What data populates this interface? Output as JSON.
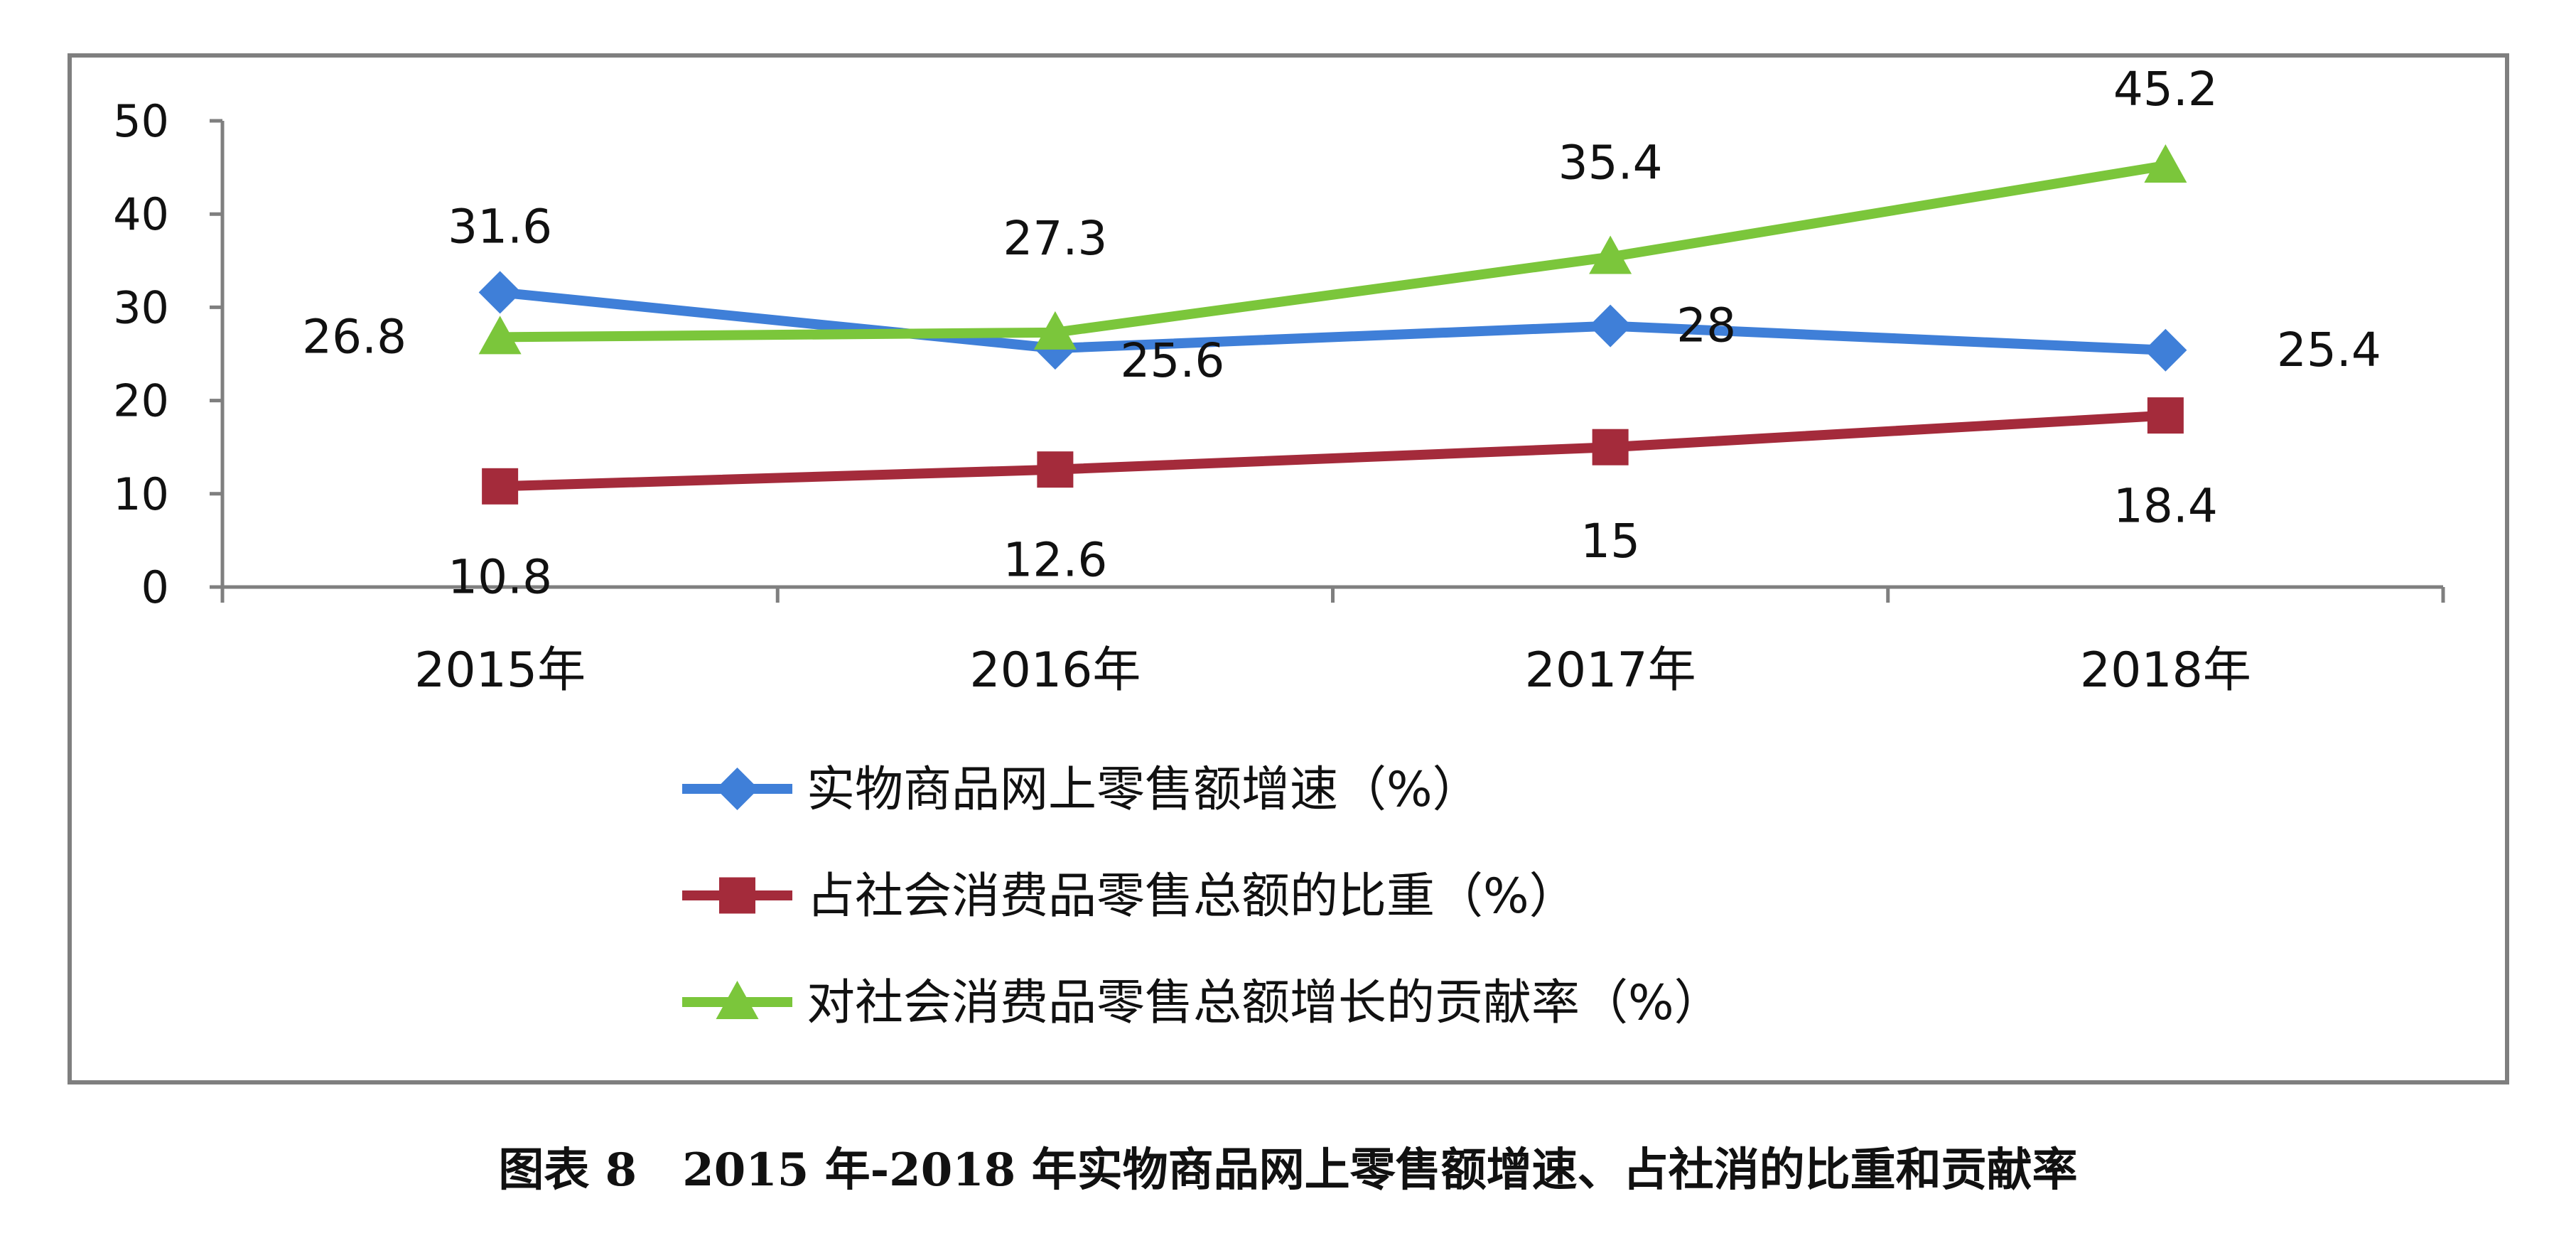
{
  "caption": "图表 8　2015 年-2018 年实物商品网上零售额增速、占社消的比重和贡献率",
  "chart_data": {
    "type": "line",
    "categories": [
      "2015年",
      "2016年",
      "2017年",
      "2018年"
    ],
    "ylim": [
      0,
      50
    ],
    "yticks": [
      0,
      10,
      20,
      30,
      40,
      50
    ],
    "grid": false,
    "legend_position": "bottom",
    "series": [
      {
        "name": "实物商品网上零售额增速（%）",
        "values": [
          31.6,
          25.6,
          28,
          25.4
        ],
        "color": "#3f7fd8",
        "marker": "diamond"
      },
      {
        "name": "占社会消费品零售总额的比重（%）",
        "values": [
          10.8,
          12.6,
          15,
          18.4
        ],
        "color": "#a42b3b",
        "marker": "square"
      },
      {
        "name": "对社会消费品零售总额增长的贡献率（%）",
        "values": [
          26.8,
          27.3,
          35.4,
          45.2
        ],
        "color": "#7bc63b",
        "marker": "triangle"
      }
    ]
  }
}
